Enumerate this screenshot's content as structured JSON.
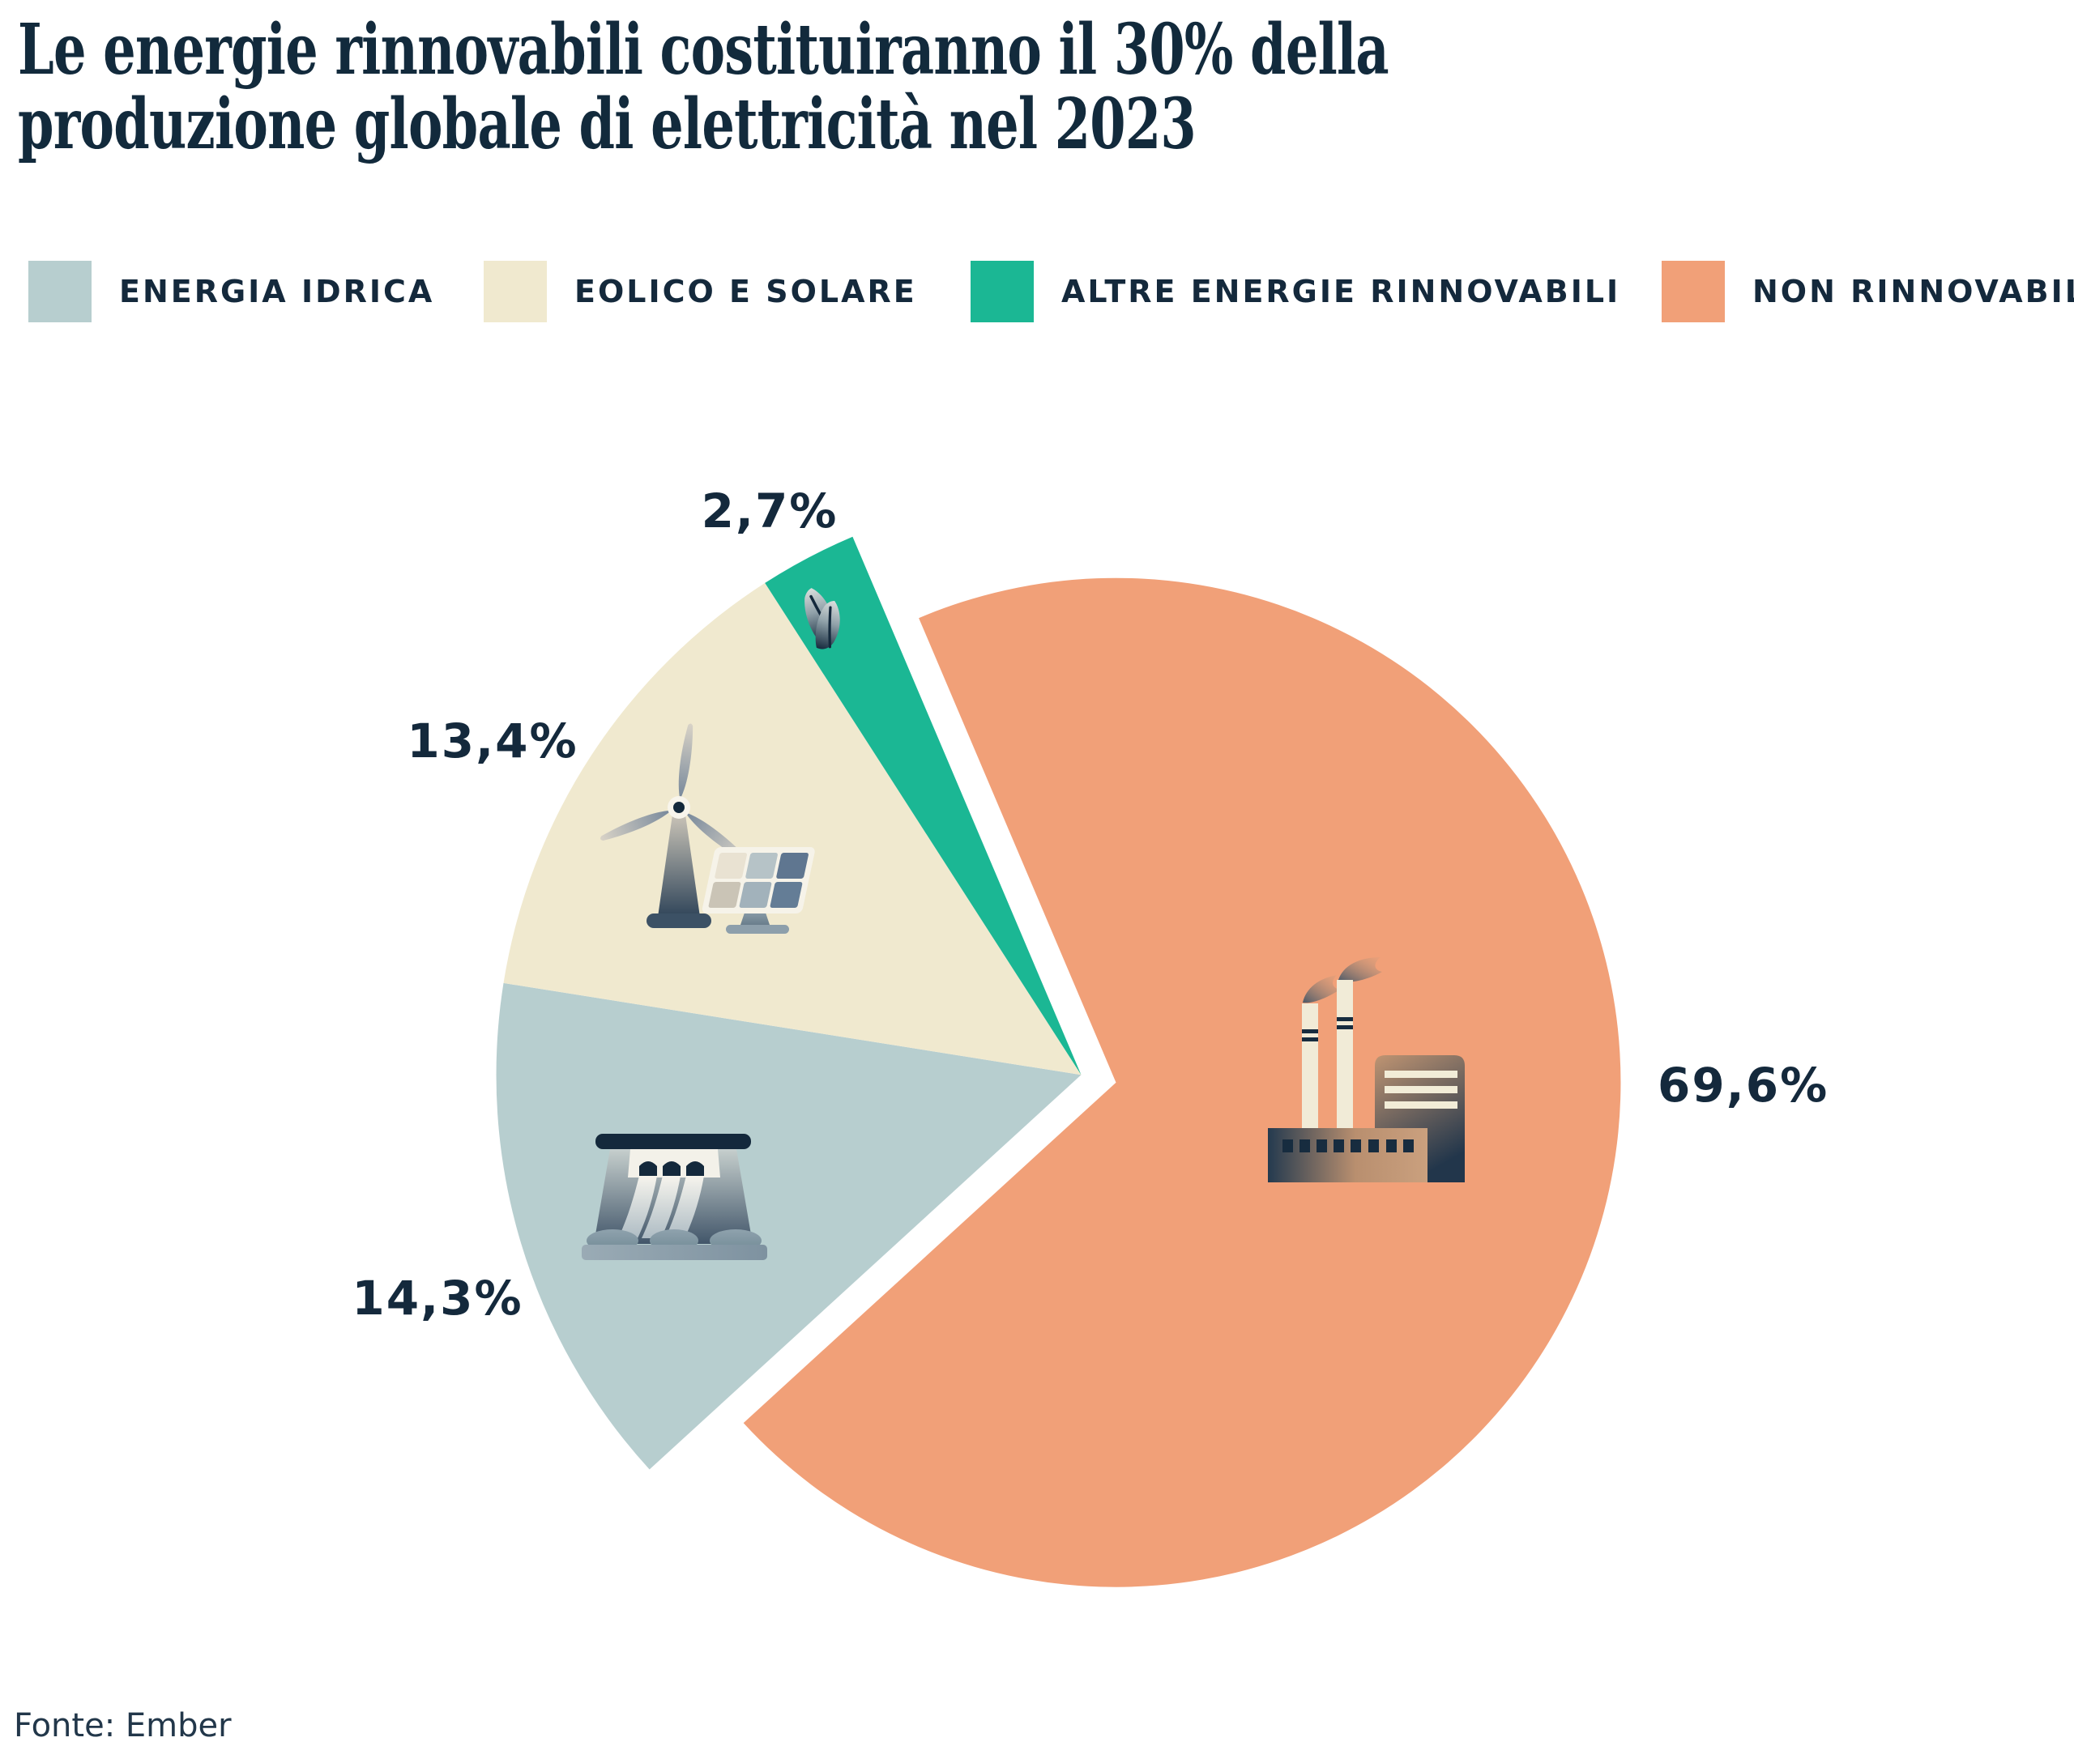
{
  "title_lines": [
    "Le energie rinnovabili costituiranno il 30% della",
    "produzione globale di elettricità nel 2023"
  ],
  "legend": [
    {
      "label": "ENERGIA IDRICA",
      "color": "#b7cecf"
    },
    {
      "label": "EOLICO E SOLARE",
      "color": "#f0e9cf"
    },
    {
      "label": "ALTRE ENERGIE RINNOVABILI",
      "color": "#1bb794"
    },
    {
      "label": "NON RINNOVABILI",
      "color": "#f1a078"
    }
  ],
  "chart_data": {
    "type": "pie",
    "title": "Le energie rinnovabili costituiranno il 30% della produzione globale di elettricità nel 2023",
    "unit": "%",
    "legend_position": "top",
    "rotation_deg": -132.44,
    "exploded_group_gap": true,
    "slices": [
      {
        "label": "Energia idrica",
        "value": 14.3,
        "display": "14,3%",
        "color": "#b7cecf",
        "group": "rinnovabili",
        "icon": "dam"
      },
      {
        "label": "Eolico e solare",
        "value": 13.4,
        "display": "13,4%",
        "color": "#f0e9cf",
        "group": "rinnovabili",
        "icon": "wind-solar"
      },
      {
        "label": "Altre energie rinnovabili",
        "value": 2.7,
        "display": "2,7%",
        "color": "#1bb794",
        "group": "rinnovabili",
        "icon": "leaf"
      },
      {
        "label": "Non rinnovabili",
        "value": 69.6,
        "display": "69,6%",
        "color": "#f1a078",
        "group": "non-rinnovabili",
        "icon": "factory"
      }
    ]
  },
  "source": "Fonte: Ember",
  "colors": {
    "background": "#ffffff",
    "text": "#14293c",
    "title_text": "#122a3c",
    "source_text": "#22374a"
  }
}
